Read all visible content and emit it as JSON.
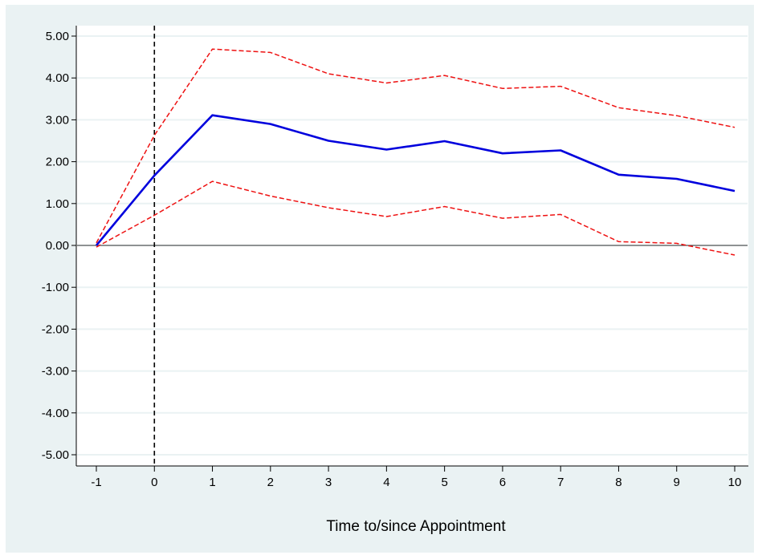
{
  "chart_data": {
    "type": "line",
    "title": "",
    "xlabel": "Time to/since Appointment",
    "ylabel": "",
    "x": [
      -1,
      0,
      1,
      2,
      3,
      4,
      5,
      6,
      7,
      8,
      9,
      10
    ],
    "xlim": [
      -1,
      10
    ],
    "ylim": [
      -5,
      5
    ],
    "x_ticks": [
      -1,
      0,
      1,
      2,
      3,
      4,
      5,
      6,
      7,
      8,
      9,
      10
    ],
    "x_tick_labels": [
      "-1",
      "0",
      "1",
      "2",
      "3",
      "4",
      "5",
      "6",
      "7",
      "8",
      "9",
      "10"
    ],
    "y_ticks": [
      5,
      4,
      3,
      2,
      1,
      0,
      -1,
      -2,
      -3,
      -4,
      -5
    ],
    "y_tick_labels": [
      "5.00",
      "4.00",
      "3.00",
      "2.00",
      "1.00",
      "0.00",
      "-1.00",
      "-2.00",
      "-3.00",
      "-4.00",
      "-5.00"
    ],
    "grid": true,
    "legend": "none",
    "reference_lines": {
      "horizontal_y": 0,
      "vertical_x": 0
    },
    "series": [
      {
        "values": [
          0.0,
          1.67,
          3.11,
          2.9,
          2.5,
          2.29,
          2.49,
          2.2,
          2.27,
          1.69,
          1.59,
          1.3
        ],
        "color": "#0000dd",
        "style": "solid"
      },
      {
        "values": [
          0.06,
          2.63,
          4.69,
          4.61,
          4.1,
          3.88,
          4.06,
          3.75,
          3.8,
          3.29,
          3.1,
          2.82
        ],
        "color": "#ee1111",
        "style": "dashed"
      },
      {
        "values": [
          -0.04,
          0.72,
          1.53,
          1.18,
          0.9,
          0.69,
          0.93,
          0.65,
          0.74,
          0.09,
          0.05,
          -0.23
        ],
        "color": "#ee1111",
        "style": "dashed"
      }
    ]
  },
  "colors": {
    "outer_background": "#eaf2f3",
    "plot_background": "#ffffff",
    "gridline": "#eaf2f3",
    "axis": "#000000"
  }
}
